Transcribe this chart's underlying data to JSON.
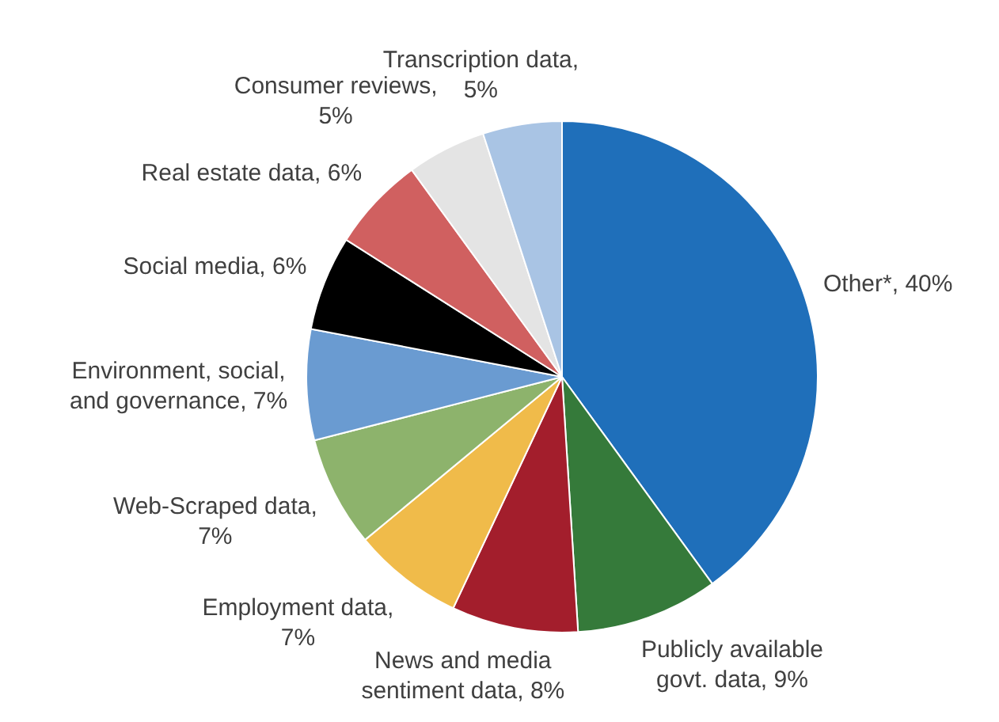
{
  "chart_data": {
    "type": "pie",
    "categories": [
      "Other*, 40%",
      "Publicly available govt. data, 9%",
      "News and media sentiment data, 8%",
      "Employment data, 7%",
      "Web-Scraped data, 7%",
      "Environment, social, and governance, 7%",
      "Social media, 6%",
      "Real estate data, 6%",
      "Consumer reviews, 5%",
      "Transcription data, 5%"
    ],
    "values": [
      40,
      9,
      8,
      7,
      7,
      7,
      6,
      6,
      5,
      5
    ],
    "colors": [
      "#1f6fba",
      "#357a3a",
      "#a31e2c",
      "#f0bb4a",
      "#8db36c",
      "#6a9bd1",
      "#000000",
      "#d06060",
      "#e4e4e4",
      "#a9c4e4"
    ],
    "legend": false
  }
}
